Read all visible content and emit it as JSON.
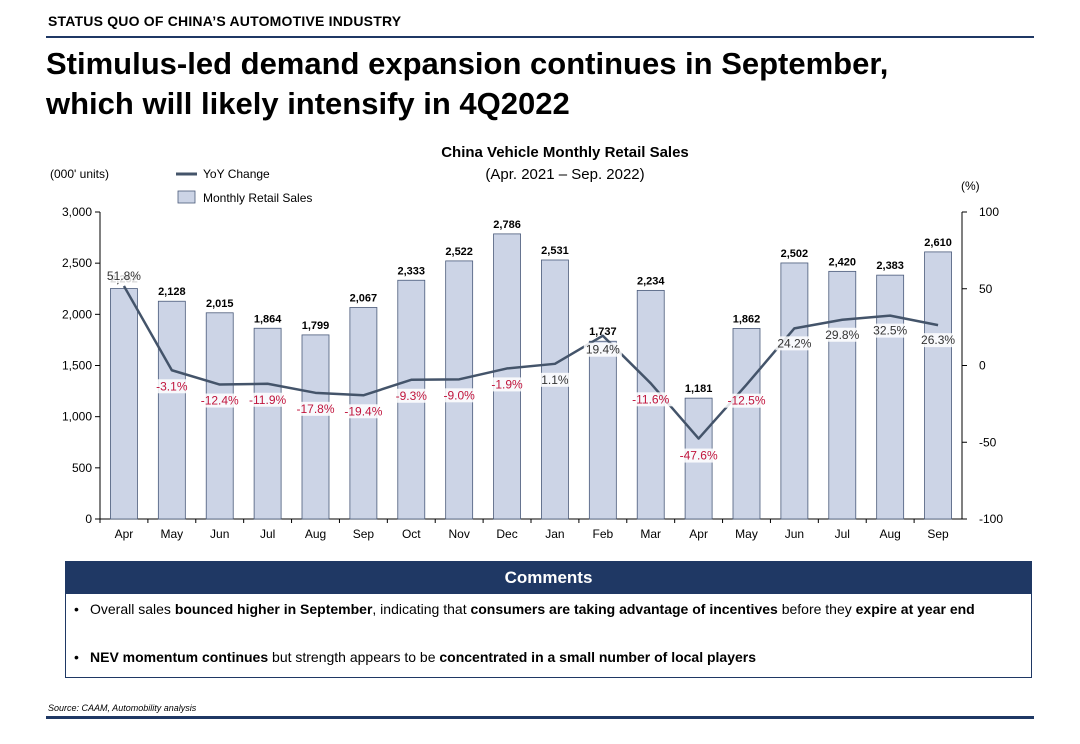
{
  "header": {
    "tag": "STATUS QUO OF CHINA’S AUTOMOTIVE INDUSTRY",
    "title_line1": "Stimulus-led demand expansion continues in September,",
    "title_line2": "which will likely intensify in 4Q2022"
  },
  "chart_data": {
    "type": "bar",
    "title": "China Vehicle Monthly Retail Sales",
    "subtitle": "(Apr. 2021 – Sep. 2022)",
    "y_left_unit": "(000' units)",
    "y_right_unit": "(%)",
    "categories": [
      "Apr",
      "May",
      "Jun",
      "Jul",
      "Aug",
      "Sep",
      "Oct",
      "Nov",
      "Dec",
      "Jan",
      "Feb",
      "Mar",
      "Apr",
      "May",
      "Jun",
      "Jul",
      "Aug",
      "Sep"
    ],
    "series": [
      {
        "name": "Monthly Retail Sales",
        "type": "bar",
        "axis": "left",
        "values": [
          2252,
          2128,
          2015,
          1864,
          1799,
          2067,
          2333,
          2522,
          2786,
          2531,
          1737,
          2234,
          1181,
          1862,
          2502,
          2420,
          2383,
          2610
        ],
        "labels": [
          "2,252",
          "2,128",
          "2,015",
          "1,864",
          "1,799",
          "2,067",
          "2,333",
          "2,522",
          "2,786",
          "2,531",
          "1,737",
          "2,234",
          "1,181",
          "1,862",
          "2,502",
          "2,420",
          "2,383",
          "2,610"
        ]
      },
      {
        "name": "YoY Change",
        "type": "line",
        "axis": "right",
        "values": [
          51.8,
          -3.1,
          -12.4,
          -11.9,
          -17.8,
          -19.4,
          -9.3,
          -9.0,
          -1.9,
          1.1,
          19.4,
          -11.6,
          -47.6,
          -12.5,
          24.2,
          29.8,
          32.5,
          26.3
        ],
        "labels": [
          "51.8%",
          "-3.1%",
          "-12.4%",
          "-11.9%",
          "-17.8%",
          "-19.4%",
          "-9.3%",
          "-9.0%",
          "-1.9%",
          "1.1%",
          "19.4%",
          "-11.6%",
          "-47.6%",
          "-12.5%",
          "24.2%",
          "29.8%",
          "32.5%",
          "26.3%"
        ]
      }
    ],
    "y_left": {
      "min": 0,
      "max": 3000,
      "ticks": [
        0,
        500,
        1000,
        1500,
        2000,
        2500,
        3000
      ],
      "tick_labels": [
        "0",
        "500",
        "1,000",
        "1,500",
        "2,000",
        "2,500",
        "3,000"
      ]
    },
    "y_right": {
      "min": -100,
      "max": 100,
      "ticks": [
        -100,
        -50,
        0,
        50,
        100
      ],
      "tick_labels": [
        "-100",
        "-50",
        "0",
        "50",
        "100"
      ]
    },
    "legend_position": "top-left",
    "grid": false,
    "colors": {
      "bar_fill": "#ccd4e6",
      "bar_stroke": "#4a5a7a",
      "line": "#44546a",
      "negative_label": "#c0143c",
      "positive_label": "#333333"
    }
  },
  "comments": {
    "header": "Comments",
    "items": [
      {
        "bullet": "•",
        "parts": [
          {
            "text": "Overall sales ",
            "bold": false
          },
          {
            "text": "bounced higher in September",
            "bold": true
          },
          {
            "text": ", indicating that ",
            "bold": false
          },
          {
            "text": "consumers are taking advantage of incentives",
            "bold": true
          },
          {
            "text": " before they ",
            "bold": false
          },
          {
            "text": "expire at year end",
            "bold": true
          }
        ]
      },
      {
        "bullet": "•",
        "parts": [
          {
            "text": "NEV momentum continues",
            "bold": true
          },
          {
            "text": " but strength appears to be ",
            "bold": false
          },
          {
            "text": "concentrated in a small number of local players",
            "bold": true
          }
        ]
      }
    ]
  },
  "source": "Source: CAAM, Automobility analysis"
}
